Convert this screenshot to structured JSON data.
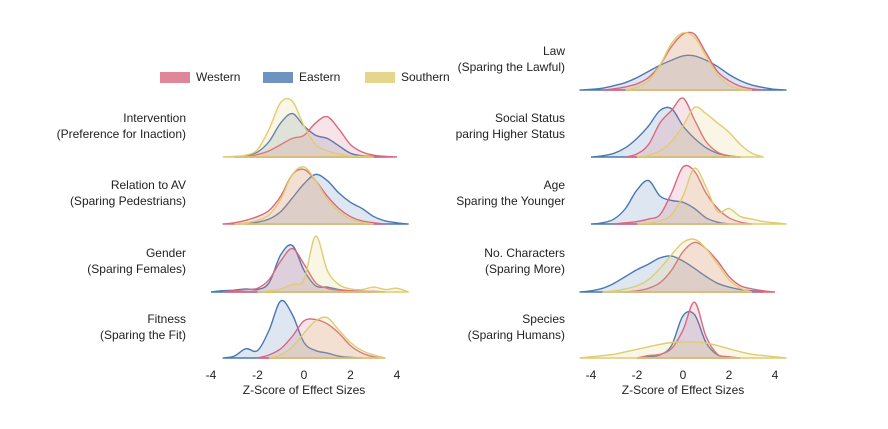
{
  "chart_data": [
    {
      "type": "ridgeline",
      "legend": [
        {
          "name": "Western",
          "color": "#d9687e"
        },
        {
          "name": "Eastern",
          "color": "#4a78b0"
        },
        {
          "name": "Southern",
          "color": "#e0cc70"
        }
      ],
      "x": [
        -4.5,
        -4,
        -3.5,
        -3,
        -2.5,
        -2,
        -1.5,
        -1,
        -0.5,
        0,
        0.5,
        1,
        1.5,
        2,
        2.5,
        3,
        3.5,
        4,
        4.5
      ],
      "xlim": [
        -4,
        4
      ],
      "xticks": [
        -4,
        -2,
        0,
        2,
        4
      ],
      "xlabel": "Z-Score of Effect Sizes",
      "rows": [
        {
          "label": [
            "Intervention",
            "(Preference for Inaction)"
          ],
          "densities": [
            [
              null,
              null,
              null,
              0,
              0.01,
              0.04,
              0.1,
              0.2,
              0.3,
              0.35,
              0.55,
              0.65,
              0.45,
              0.2,
              0.08,
              0.03,
              0.01,
              0,
              null
            ],
            [
              null,
              null,
              null,
              0,
              0.02,
              0.08,
              0.25,
              0.55,
              0.7,
              0.5,
              0.35,
              0.3,
              0.18,
              0.06,
              0.02,
              0.01,
              0,
              null,
              null
            ],
            [
              null,
              null,
              0,
              0.01,
              0.03,
              0.12,
              0.45,
              0.88,
              0.9,
              0.5,
              0.2,
              0.1,
              0.05,
              0.02,
              0.01,
              0,
              null,
              null,
              null
            ]
          ]
        },
        {
          "label": [
            "Relation to AV",
            "(Sparing Pedestrians)"
          ],
          "densities": [
            [
              null,
              null,
              0,
              0.02,
              0.06,
              0.12,
              0.22,
              0.45,
              0.8,
              0.88,
              0.7,
              0.45,
              0.25,
              0.12,
              0.05,
              0.02,
              0,
              null,
              null
            ],
            [
              null,
              null,
              null,
              null,
              0,
              0.03,
              0.08,
              0.2,
              0.42,
              0.65,
              0.8,
              0.7,
              0.5,
              0.35,
              0.25,
              0.12,
              0.05,
              0.02,
              0
            ],
            [
              null,
              null,
              null,
              0,
              0.02,
              0.06,
              0.15,
              0.4,
              0.8,
              0.92,
              0.7,
              0.4,
              0.2,
              0.08,
              0.03,
              0,
              null,
              null,
              null
            ]
          ]
        },
        {
          "label": [
            "Gender",
            "(Sparing Females)"
          ],
          "densities": [
            [
              null,
              null,
              0,
              0.02,
              0.04,
              0.06,
              0.2,
              0.5,
              0.7,
              0.45,
              0.15,
              0.06,
              0.03,
              0.02,
              0.01,
              0.01,
              0,
              null,
              null
            ],
            [
              null,
              0,
              0.02,
              0.03,
              0.05,
              0.04,
              0.15,
              0.6,
              0.75,
              0.35,
              0.1,
              0.08,
              0.04,
              0.02,
              0.01,
              0,
              null,
              null,
              null
            ],
            [
              null,
              null,
              null,
              null,
              null,
              0,
              0.02,
              0.05,
              0.12,
              0.2,
              0.9,
              0.35,
              0.12,
              0.05,
              0.04,
              0.08,
              0.04,
              0.06,
              0
            ]
          ]
        },
        {
          "label": [
            "Fitness",
            "(Sparing the Fit)"
          ],
          "densities": [
            [
              null,
              null,
              null,
              null,
              null,
              0,
              0.05,
              0.15,
              0.35,
              0.6,
              0.62,
              0.55,
              0.4,
              0.2,
              0.08,
              0.02,
              0,
              null,
              null
            ],
            [
              null,
              null,
              0,
              0.03,
              0.15,
              0.12,
              0.45,
              0.92,
              0.7,
              0.25,
              0.12,
              0.08,
              0.03,
              0.01,
              0,
              null,
              null,
              null,
              null
            ],
            [
              null,
              null,
              null,
              null,
              null,
              null,
              0,
              0.05,
              0.18,
              0.4,
              0.6,
              0.65,
              0.45,
              0.25,
              0.12,
              0.05,
              0,
              null,
              null
            ]
          ]
        }
      ]
    },
    {
      "type": "ridgeline",
      "x": [
        -4.5,
        -4,
        -3.5,
        -3,
        -2.5,
        -2,
        -1.5,
        -1,
        -0.5,
        0,
        0.5,
        1,
        1.5,
        2,
        2.5,
        3,
        3.5,
        4,
        4.5
      ],
      "xlim": [
        -4,
        4
      ],
      "xticks": [
        -4,
        -2,
        0,
        2,
        4
      ],
      "xlabel": "Z-Score of Effect Sizes",
      "rows": [
        {
          "label": [
            "Law",
            "(Sparing the Lawful)"
          ],
          "densities": [
            [
              null,
              null,
              0,
              0.02,
              0.05,
              0.1,
              0.2,
              0.4,
              0.7,
              0.9,
              0.9,
              0.6,
              0.3,
              0.15,
              0.06,
              0.02,
              0,
              null,
              null
            ],
            [
              0,
              0.01,
              0.03,
              0.07,
              0.12,
              0.2,
              0.3,
              0.4,
              0.48,
              0.55,
              0.55,
              0.48,
              0.38,
              0.25,
              0.15,
              0.08,
              0.04,
              0.01,
              0
            ],
            [
              null,
              null,
              null,
              null,
              0,
              0.05,
              0.15,
              0.4,
              0.75,
              0.92,
              0.85,
              0.55,
              0.25,
              0.08,
              0.02,
              0,
              null,
              null,
              null
            ]
          ]
        },
        {
          "label": [
            "Social Status",
            "paring Higher Status"
          ],
          "densities": [
            [
              null,
              null,
              null,
              null,
              0,
              0.05,
              0.2,
              0.55,
              0.75,
              0.95,
              0.6,
              0.25,
              0.08,
              0.02,
              0,
              null,
              null,
              null,
              null
            ],
            [
              null,
              0,
              0.02,
              0.06,
              0.15,
              0.3,
              0.5,
              0.75,
              0.78,
              0.5,
              0.3,
              0.15,
              0.06,
              0.02,
              0,
              null,
              null,
              null,
              null
            ],
            [
              null,
              null,
              null,
              null,
              null,
              0,
              0.03,
              0.1,
              0.25,
              0.5,
              0.8,
              0.7,
              0.55,
              0.4,
              0.2,
              0.06,
              0,
              null,
              null
            ]
          ]
        },
        {
          "label": [
            "Age",
            "Sparing the Younger"
          ],
          "densities": [
            [
              null,
              null,
              null,
              0,
              0.02,
              0.04,
              0.08,
              0.15,
              0.5,
              0.92,
              0.85,
              0.5,
              0.25,
              0.1,
              0.03,
              0,
              null,
              null,
              null
            ],
            [
              null,
              0,
              0.02,
              0.08,
              0.25,
              0.55,
              0.7,
              0.45,
              0.38,
              0.35,
              0.25,
              0.1,
              0.03,
              0,
              null,
              null,
              null,
              null,
              null
            ],
            [
              null,
              null,
              null,
              null,
              null,
              0,
              0.02,
              0.05,
              0.15,
              0.45,
              0.9,
              0.6,
              0.2,
              0.25,
              0.12,
              0.08,
              0.04,
              0.02,
              0
            ]
          ]
        },
        {
          "label": [
            "No. Characters",
            "(Sparing More)"
          ],
          "densities": [
            [
              null,
              null,
              null,
              null,
              0,
              0.02,
              0.06,
              0.15,
              0.35,
              0.65,
              0.8,
              0.7,
              0.5,
              0.25,
              0.1,
              0.05,
              0.02,
              0,
              null
            ],
            [
              0,
              0.02,
              0.06,
              0.14,
              0.25,
              0.36,
              0.45,
              0.55,
              0.58,
              0.5,
              0.38,
              0.25,
              0.14,
              0.08,
              0.04,
              0.02,
              0,
              null,
              null
            ],
            [
              null,
              null,
              0,
              0.02,
              0.05,
              0.1,
              0.2,
              0.38,
              0.6,
              0.8,
              0.85,
              0.7,
              0.45,
              0.2,
              0.06,
              0,
              null,
              null,
              null
            ]
          ]
        },
        {
          "label": [
            "Species",
            "(Sparing Humans)"
          ],
          "densities": [
            [
              null,
              null,
              null,
              null,
              null,
              0,
              0.04,
              0.06,
              0.15,
              0.45,
              0.9,
              0.35,
              0.06,
              0.02,
              0,
              null,
              null,
              null,
              null
            ],
            [
              null,
              null,
              null,
              null,
              null,
              0,
              0.02,
              0.05,
              0.2,
              0.68,
              0.7,
              0.25,
              0.05,
              0.02,
              0,
              null,
              null,
              null,
              null
            ],
            [
              0,
              0.02,
              0.04,
              0.06,
              0.1,
              0.14,
              0.18,
              0.22,
              0.25,
              0.26,
              0.26,
              0.24,
              0.2,
              0.15,
              0.1,
              0.06,
              0.04,
              0.02,
              0
            ]
          ]
        }
      ]
    }
  ]
}
